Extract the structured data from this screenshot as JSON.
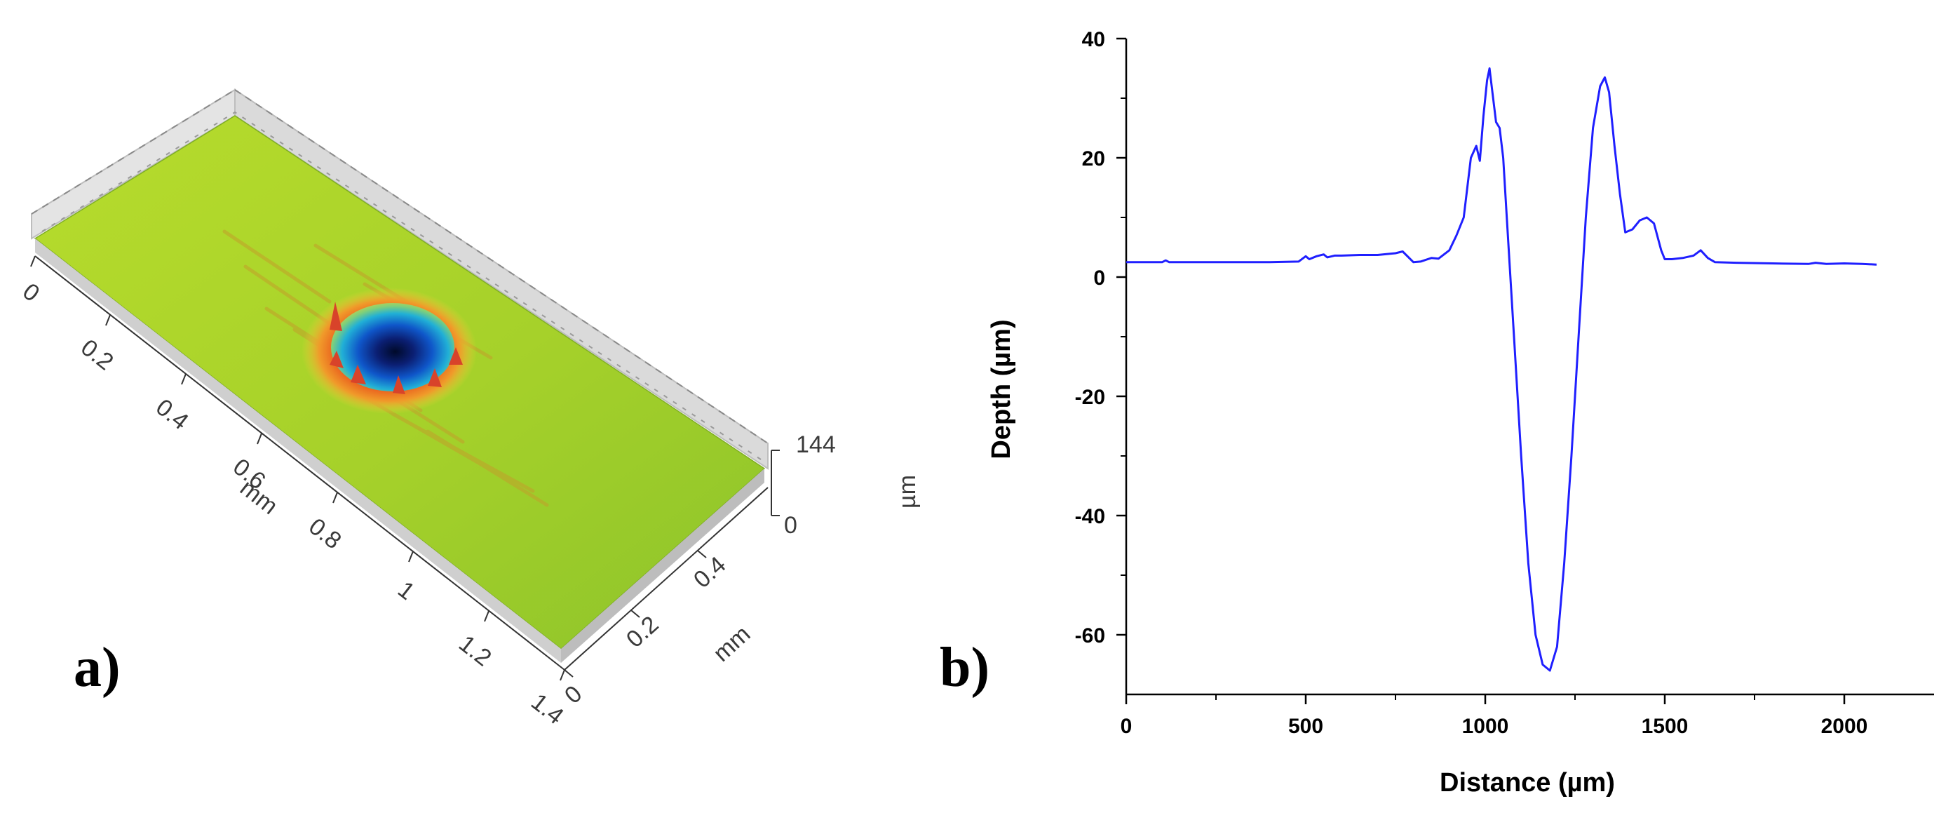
{
  "panel_a": {
    "letter": "a)",
    "x_ticks": [
      "0",
      "0.2",
      "0.4",
      "0.6",
      "0.8",
      "1",
      "1.2",
      "1.4"
    ],
    "x_unit": "mm",
    "y_ticks": [
      "0",
      "0.2",
      "0.4"
    ],
    "y_unit": "mm",
    "z_ticks": [
      "0",
      "144"
    ],
    "z_unit": "µm",
    "colors": {
      "surface": "#a8d42a",
      "rim": "#e8761e",
      "crater": "#0a1a5a",
      "frame": "#d8d8d8"
    }
  },
  "panel_b": {
    "letter": "b)"
  },
  "chart_data": {
    "type": "line",
    "xlabel": "Distance (µm)",
    "ylabel": "Depth (µm)",
    "xlim": [
      0,
      2250
    ],
    "ylim": [
      -70,
      40
    ],
    "x_ticks": [
      0,
      500,
      1000,
      1500,
      2000
    ],
    "y_ticks": [
      -60,
      -40,
      -20,
      0,
      20,
      40
    ],
    "grid": false,
    "color": "#1f1fff",
    "series": [
      {
        "x": [
          0,
          100,
          110,
          120,
          200,
          300,
          400,
          480,
          500,
          510,
          530,
          550,
          560,
          580,
          600,
          650,
          700,
          750,
          770,
          800,
          820,
          850,
          870,
          900,
          920,
          940,
          960,
          975,
          985,
          995,
          1005,
          1012,
          1020,
          1030,
          1040,
          1050,
          1060,
          1080,
          1100,
          1120,
          1140,
          1160,
          1180,
          1200,
          1220,
          1240,
          1260,
          1280,
          1300,
          1320,
          1333,
          1345,
          1360,
          1375,
          1390,
          1410,
          1430,
          1450,
          1470,
          1490,
          1500,
          1520,
          1550,
          1580,
          1600,
          1620,
          1640,
          1700,
          1800,
          1900,
          1920,
          1950,
          2000,
          2050,
          2090
        ],
        "y": [
          2.5,
          2.5,
          2.8,
          2.5,
          2.5,
          2.5,
          2.5,
          2.6,
          3.5,
          3.0,
          3.5,
          3.8,
          3.3,
          3.6,
          3.6,
          3.7,
          3.7,
          4.0,
          4.3,
          2.5,
          2.6,
          3.2,
          3.1,
          4.5,
          7.0,
          10.0,
          20.0,
          22.0,
          19.5,
          27.0,
          33.0,
          35.0,
          31.0,
          26.0,
          25.0,
          20.0,
          10.0,
          -10.0,
          -30.0,
          -48.0,
          -60.0,
          -65.0,
          -66.0,
          -62.0,
          -48.0,
          -30.0,
          -10.0,
          10.0,
          25.0,
          32.0,
          33.5,
          31.0,
          22.0,
          14.0,
          7.5,
          8.0,
          9.5,
          10.0,
          9.0,
          4.5,
          3.0,
          3.0,
          3.2,
          3.6,
          4.5,
          3.2,
          2.5,
          2.4,
          2.3,
          2.2,
          2.4,
          2.2,
          2.3,
          2.2,
          2.1
        ]
      }
    ]
  }
}
